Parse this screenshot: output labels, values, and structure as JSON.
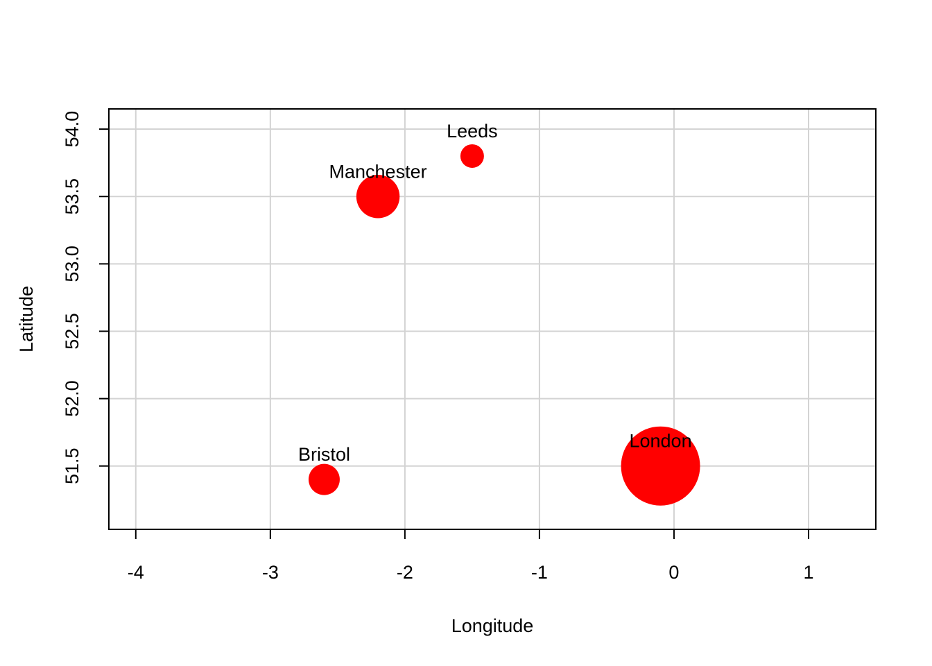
{
  "chart_data": {
    "type": "scatter",
    "title": "",
    "xlabel": "Longitude",
    "ylabel": "Latitude",
    "xlim": [
      -4.2,
      1.5
    ],
    "ylim": [
      51.03,
      54.15
    ],
    "grid": true,
    "x_ticks": [
      -4,
      -3,
      -2,
      -1,
      0,
      1
    ],
    "x_tick_labels": [
      "-4",
      "-3",
      "-2",
      "-1",
      "0",
      "1"
    ],
    "y_ticks": [
      51.5,
      52.0,
      52.5,
      53.0,
      53.5,
      54.0
    ],
    "y_tick_labels": [
      "51.5",
      "52.0",
      "52.5",
      "53.0",
      "53.5",
      "54.0"
    ],
    "point_color": "#ff0000",
    "grid_color": "#d3d3d3",
    "points": [
      {
        "label": "London",
        "x": -0.1,
        "y": 51.5,
        "size": 9.0
      },
      {
        "label": "Manchester",
        "x": -2.2,
        "y": 53.5,
        "size": 2.7
      },
      {
        "label": "Leeds",
        "x": -1.5,
        "y": 53.8,
        "size": 0.8
      },
      {
        "label": "Bristol",
        "x": -2.6,
        "y": 51.4,
        "size": 1.4
      }
    ]
  }
}
